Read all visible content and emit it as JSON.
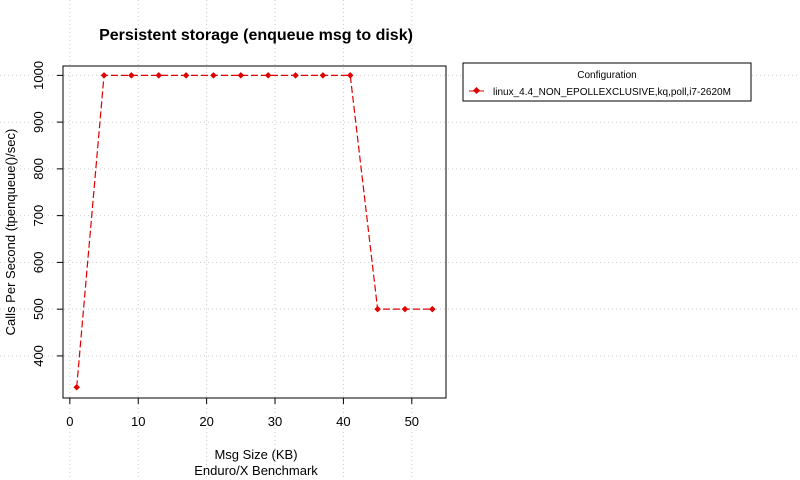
{
  "chart_data": {
    "type": "line",
    "title": "Persistent storage (enqueue msg to disk)",
    "xlabel": "Msg Size (KB)",
    "xlabel_sub": "Enduro/X Benchmark",
    "ylabel": "Calls Per Second (tpenqueue()/sec)",
    "xlim": [
      -1,
      55
    ],
    "ylim": [
      310,
      1020
    ],
    "x_ticks": [
      0,
      10,
      20,
      30,
      40,
      50
    ],
    "y_ticks": [
      400,
      500,
      600,
      700,
      800,
      900,
      1000
    ],
    "grid": true,
    "legend_position": "right",
    "legend_title": "Configuration",
    "series": [
      {
        "name": "linux_4.4_NON_EPOLLEXCLUSIVE,kq,poll,i7-2620M",
        "color": "#e00000",
        "x": [
          1,
          5,
          9,
          13,
          17,
          21,
          25,
          29,
          33,
          37,
          41,
          45,
          49,
          53
        ],
        "values": [
          333,
          1000,
          1000,
          1000,
          1000,
          1000,
          1000,
          1000,
          1000,
          1000,
          1000,
          500,
          500,
          500
        ]
      }
    ]
  }
}
